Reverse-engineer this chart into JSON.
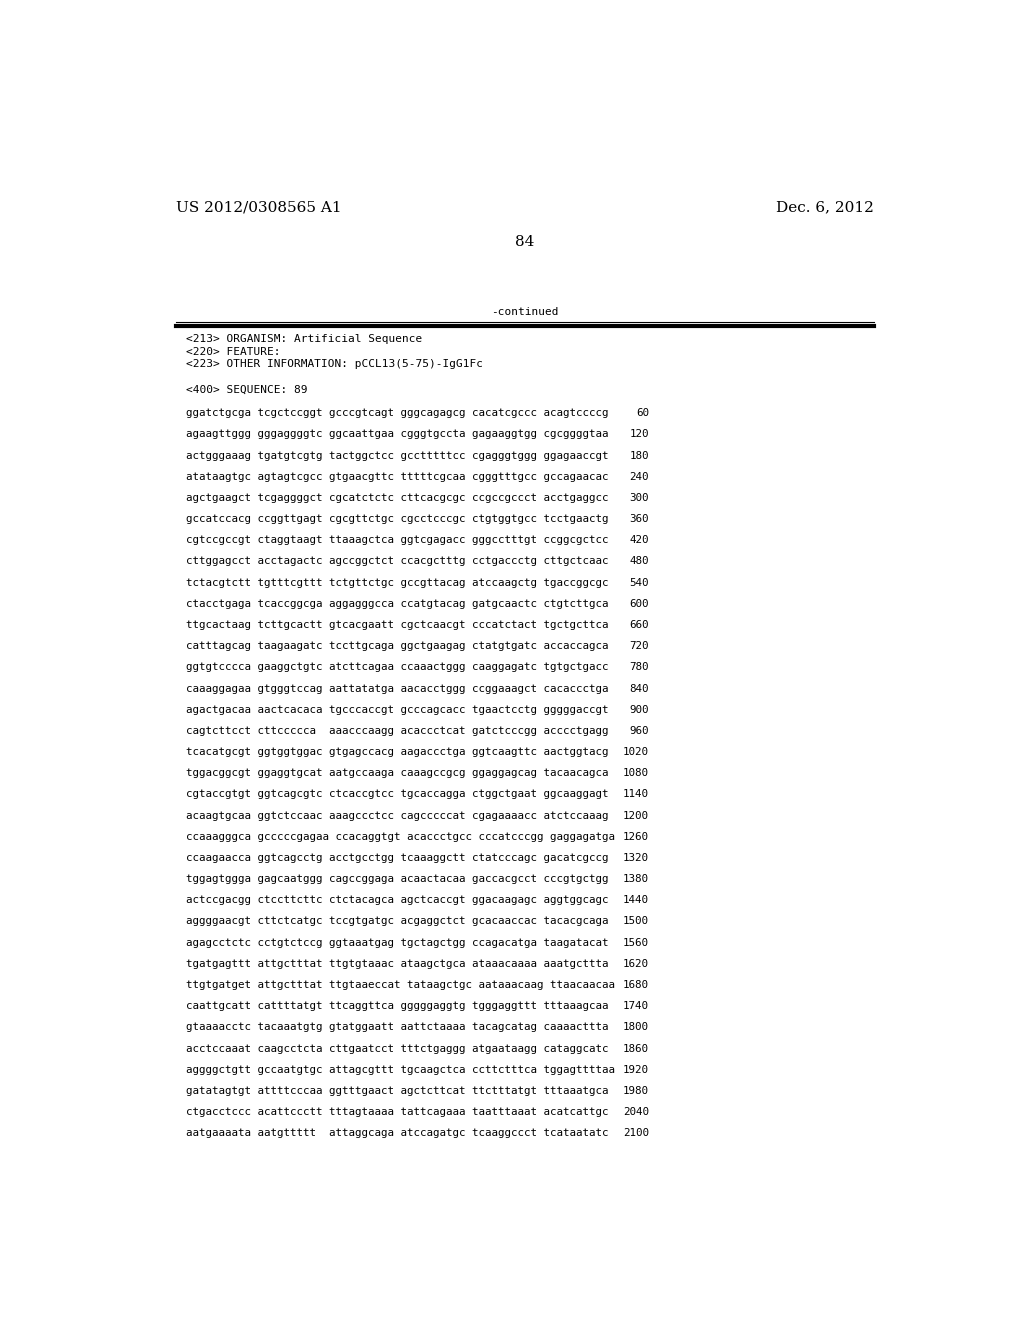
{
  "header_left": "US 2012/0308565 A1",
  "header_right": "Dec. 6, 2012",
  "page_number": "84",
  "continued_text": "-continued",
  "meta_lines": [
    "<213> ORGANISM: Artificial Sequence",
    "<220> FEATURE:",
    "<223> OTHER INFORMATION: pCCL13(5-75)-IgG1Fc",
    "",
    "<400> SEQUENCE: 89"
  ],
  "sequence_lines": [
    [
      "ggatctgcga tcgctccggt gcccgtcagt gggcagagcg cacatcgccc acagtccccg",
      "60"
    ],
    [
      "agaagttggg gggaggggtc ggcaattgaa cgggtgccta gagaaggtgg cgcggggtaa",
      "120"
    ],
    [
      "actgggaaag tgatgtcgtg tactggctcc gcctttttcc cgagggtggg ggagaaccgt",
      "180"
    ],
    [
      "atataagtgc agtagtcgcc gtgaacgttc tttttcgcaa cgggtttgcc gccagaacac",
      "240"
    ],
    [
      "agctgaagct tcgaggggct cgcatctctc cttcacgcgc ccgccgccct acctgaggcc",
      "300"
    ],
    [
      "gccatccacg ccggttgagt cgcgttctgc cgcctcccgc ctgtggtgcc tcctgaactg",
      "360"
    ],
    [
      "cgtccgccgt ctaggtaagt ttaaagctca ggtcgagacc gggcctttgt ccggcgctcc",
      "420"
    ],
    [
      "cttggagcct acctagactc agccggctct ccacgctttg cctgaccctg cttgctcaac",
      "480"
    ],
    [
      "tctacgtctt tgtttcgttt tctgttctgc gccgttacag atccaagctg tgaccggcgc",
      "540"
    ],
    [
      "ctacctgaga tcaccggcga aggagggcca ccatgtacag gatgcaactc ctgtcttgca",
      "600"
    ],
    [
      "ttgcactaag tcttgcactt gtcacgaatt cgctcaacgt cccatctact tgctgcttca",
      "660"
    ],
    [
      "catttagcag taagaagatc tccttgcaga ggctgaagag ctatgtgatc accaccagca",
      "720"
    ],
    [
      "ggtgtcccca gaaggctgtc atcttcagaa ccaaactggg caaggagatc tgtgctgacc",
      "780"
    ],
    [
      "caaaggagaa gtgggtccag aattatatga aacacctggg ccggaaagct cacaccctga",
      "840"
    ],
    [
      "agactgacaa aactcacaca tgcccaccgt gcccagcacc tgaactcctg gggggaccgt",
      "900"
    ],
    [
      "cagtcttcct cttccccca  aaacccaagg acaccctcat gatctcccgg acccctgagg",
      "960"
    ],
    [
      "tcacatgcgt ggtggtggac gtgagccacg aagaccctga ggtcaagttc aactggtacg",
      "1020"
    ],
    [
      "tggacggcgt ggaggtgcat aatgccaaga caaagccgcg ggaggagcag tacaacagca",
      "1080"
    ],
    [
      "cgtaccgtgt ggtcagcgtc ctcaccgtcc tgcaccagga ctggctgaat ggcaaggagt",
      "1140"
    ],
    [
      "acaagtgcaa ggtctccaac aaagccctcc cagcccccat cgagaaaacc atctccaaag",
      "1200"
    ],
    [
      "ccaaagggca gcccccgagaa ccacaggtgt acaccctgcc cccatcccgg gaggagatga",
      "1260"
    ],
    [
      "ccaagaacca ggtcagcctg acctgcctgg tcaaaggctt ctatcccagc gacatcgccg",
      "1320"
    ],
    [
      "tggagtggga gagcaatggg cagccggaga acaactacaa gaccacgcct cccgtgctgg",
      "1380"
    ],
    [
      "actccgacgg ctccttcttc ctctacagca agctcaccgt ggacaagagc aggtggcagc",
      "1440"
    ],
    [
      "aggggaacgt cttctcatgc tccgtgatgc acgaggctct gcacaaccac tacacgcaga",
      "1500"
    ],
    [
      "agagcctctc cctgtctccg ggtaaatgag tgctagctgg ccagacatga taagatacat",
      "1560"
    ],
    [
      "tgatgagttt attgctttat ttgtgtaaac ataagctgca ataaacaaaa aaatgcttta",
      "1620"
    ],
    [
      "ttgtgatget attgctttat ttgtaaeccat tataagctgc aataaacaag ttaacaacaa",
      "1680"
    ],
    [
      "caattgcatt cattttatgt ttcaggttca gggggaggtg tgggaggttt tttaaagcaa",
      "1740"
    ],
    [
      "gtaaaacctc tacaaatgtg gtatggaatt aattctaaaa tacagcatag caaaacttta",
      "1800"
    ],
    [
      "acctccaaat caagcctcta cttgaatcct tttctgaggg atgaataagg cataggcatc",
      "1860"
    ],
    [
      "aggggctgtt gccaatgtgc attagcgttt tgcaagctca ccttctttca tggagttttaa",
      "1920"
    ],
    [
      "gatatagtgt attttcccaa ggtttgaact agctcttcat ttctttatgt tttaaatgca",
      "1980"
    ],
    [
      "ctgacctccc acattccctt tttagtaaaa tattcagaaa taatttaaat acatcattgc",
      "2040"
    ],
    [
      "aatgaaaata aatgttttt  attaggcaga atccagatgc tcaaggccct tcataatatc",
      "2100"
    ]
  ],
  "background_color": "#ffffff",
  "text_color": "#000000",
  "font_size_header": 11,
  "font_size_body": 8.0,
  "font_size_page": 11,
  "font_size_meta": 8.0,
  "font_size_seq": 7.8
}
